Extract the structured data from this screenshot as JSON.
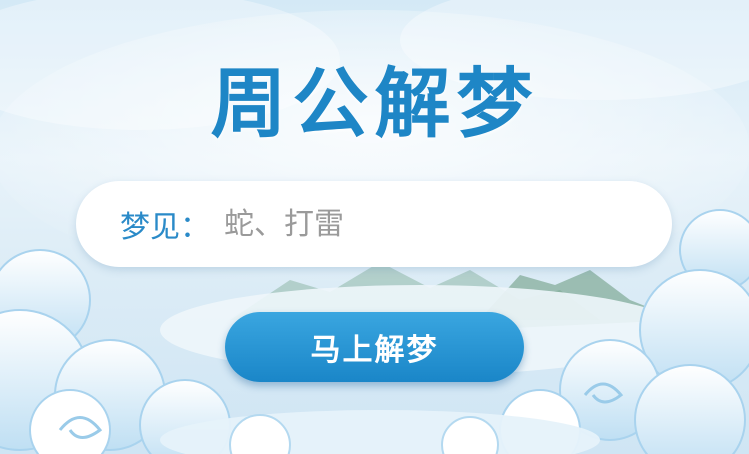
{
  "header": {
    "title": "周公解梦"
  },
  "search": {
    "label": "梦见：",
    "placeholder": "蛇、打雷",
    "value": ""
  },
  "action": {
    "submit_label": "马上解梦"
  },
  "colors": {
    "accent": "#1e86c6",
    "button": "#1a86c8",
    "background": "#dcecf6"
  }
}
